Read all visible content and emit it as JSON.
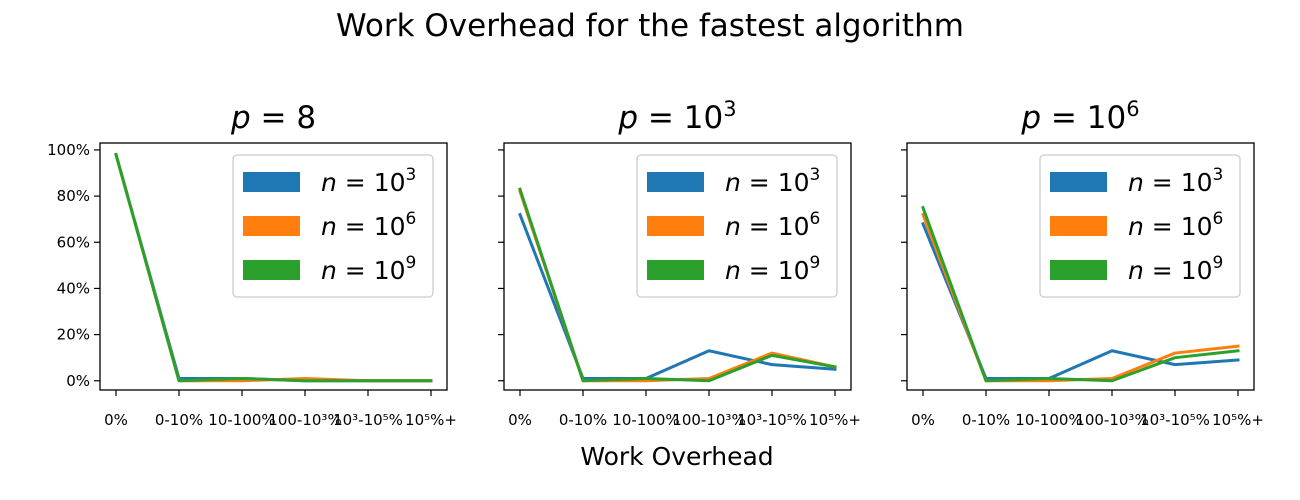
{
  "figure": {
    "suptitle": "Work Overhead for the fastest algorithm",
    "xlabel": "Work Overhead"
  },
  "chart_data": [
    {
      "type": "line",
      "title": "p = 8",
      "title_base": "p",
      "title_rest": " = 8",
      "title_exp": "",
      "categories": [
        "0%",
        "0-10%",
        "10-100%",
        "100-10³%",
        "10³-10⁵%",
        "10⁵%+"
      ],
      "ylim": [
        -0.04,
        1.03
      ],
      "yticks": [
        "0%",
        "20%",
        "40%",
        "60%",
        "80%",
        "100%"
      ],
      "ytick_values": [
        0,
        0.2,
        0.4,
        0.6,
        0.8,
        1.0
      ],
      "grid": false,
      "legend_position": "top-right",
      "series": [
        {
          "name": "n = 10³",
          "color": "#1f77b4",
          "values": [
            0.98,
            0.01,
            0.01,
            0.0,
            0.0,
            0.0
          ]
        },
        {
          "name": "n = 10⁶",
          "color": "#ff7f0e",
          "values": [
            0.98,
            0.0,
            0.0,
            0.01,
            0.0,
            0.0
          ]
        },
        {
          "name": "n = 10⁹",
          "color": "#2ca02c",
          "values": [
            0.98,
            0.0,
            0.01,
            0.0,
            0.0,
            0.0
          ]
        }
      ]
    },
    {
      "type": "line",
      "title": "p = 10³",
      "title_base": "p",
      "title_rest": " = 10",
      "title_exp": "3",
      "categories": [
        "0%",
        "0-10%",
        "10-100%",
        "100-10³%",
        "10³-10⁵%",
        "10⁵%+"
      ],
      "ylim": [
        -0.04,
        1.03
      ],
      "yticks": [
        "0%",
        "20%",
        "40%",
        "60%",
        "80%",
        "100%"
      ],
      "ytick_values": [
        0,
        0.2,
        0.4,
        0.6,
        0.8,
        1.0
      ],
      "grid": false,
      "legend_position": "top-right",
      "series": [
        {
          "name": "n = 10³",
          "color": "#1f77b4",
          "values": [
            0.72,
            0.01,
            0.01,
            0.13,
            0.07,
            0.05
          ]
        },
        {
          "name": "n = 10⁶",
          "color": "#ff7f0e",
          "values": [
            0.82,
            0.0,
            0.0,
            0.01,
            0.12,
            0.06
          ]
        },
        {
          "name": "n = 10⁹",
          "color": "#2ca02c",
          "values": [
            0.83,
            0.0,
            0.01,
            0.0,
            0.11,
            0.06
          ]
        }
      ]
    },
    {
      "type": "line",
      "title": "p = 10⁶",
      "title_base": "p",
      "title_rest": " = 10",
      "title_exp": "6",
      "categories": [
        "0%",
        "0-10%",
        "10-100%",
        "100-10³%",
        "10³-10⁵%",
        "10⁵%+"
      ],
      "ylim": [
        -0.04,
        1.03
      ],
      "yticks": [
        "0%",
        "20%",
        "40%",
        "60%",
        "80%",
        "100%"
      ],
      "ytick_values": [
        0,
        0.2,
        0.4,
        0.6,
        0.8,
        1.0
      ],
      "grid": false,
      "legend_position": "top-right",
      "series": [
        {
          "name": "n = 10³",
          "color": "#1f77b4",
          "values": [
            0.68,
            0.01,
            0.01,
            0.13,
            0.07,
            0.09
          ]
        },
        {
          "name": "n = 10⁶",
          "color": "#ff7f0e",
          "values": [
            0.72,
            0.0,
            0.0,
            0.01,
            0.12,
            0.15
          ]
        },
        {
          "name": "n = 10⁹",
          "color": "#2ca02c",
          "values": [
            0.75,
            0.0,
            0.01,
            0.0,
            0.1,
            0.13
          ]
        }
      ]
    }
  ]
}
